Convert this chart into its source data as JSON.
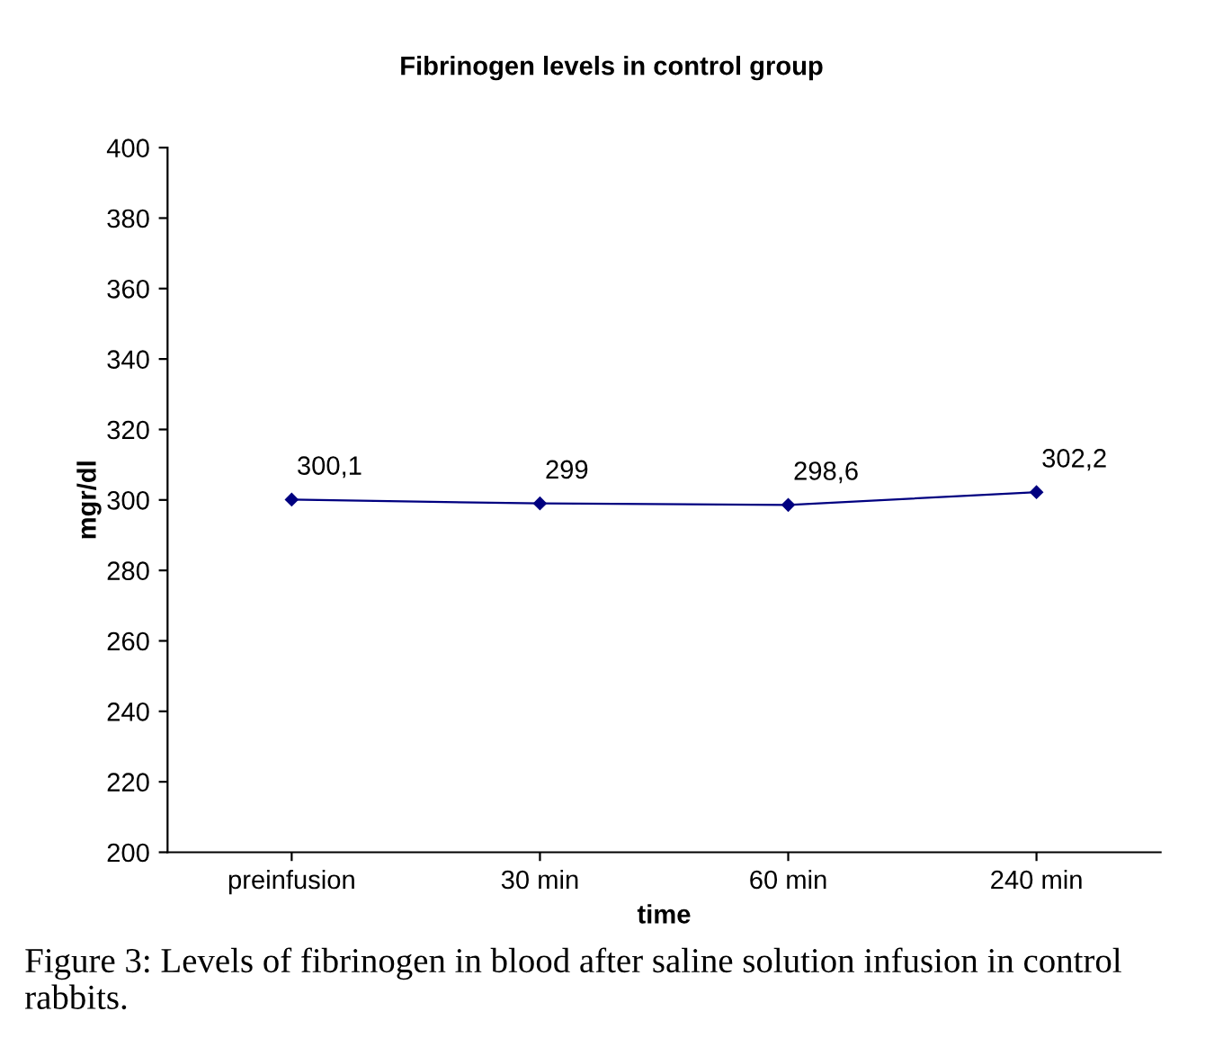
{
  "chart_data": {
    "type": "line",
    "title": "Fibrinogen levels in control group",
    "xlabel": "time",
    "ylabel": "mgr/dl",
    "categories": [
      "preinfusion",
      "30 min",
      "60 min",
      "240 min"
    ],
    "series": [
      {
        "color": "#000080",
        "values": [
          300.1,
          299,
          298.6,
          302.2
        ],
        "value_labels": [
          "300,1",
          "299",
          "298,6",
          "302,2"
        ]
      }
    ],
    "ylim": [
      200,
      400
    ],
    "yticks": [
      200,
      220,
      240,
      260,
      280,
      300,
      320,
      340,
      360,
      380,
      400
    ],
    "grid": false,
    "legend": false,
    "marker": "diamond",
    "line_style": "solid",
    "annotations": [
      "Figure 3: Levels of fibrinogen in blood after saline solution infusion in control rabbits."
    ]
  }
}
